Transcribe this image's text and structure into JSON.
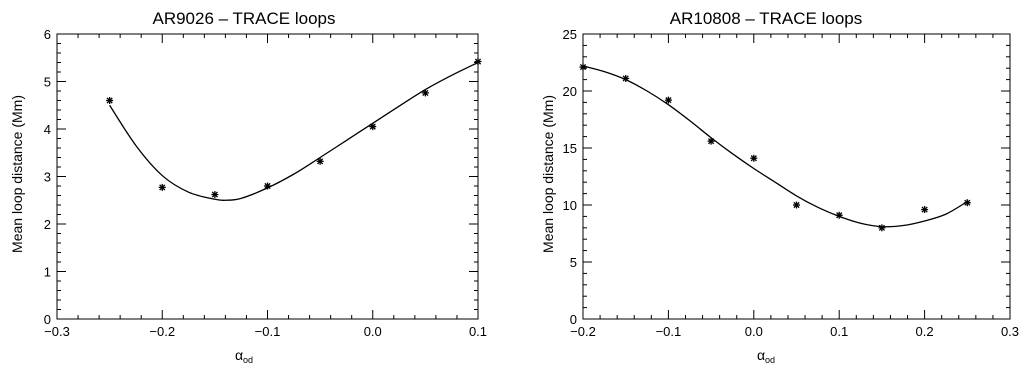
{
  "chart_data": [
    {
      "type": "scatter",
      "title": "AR9026 – TRACE loops",
      "xlabel": "α",
      "xlabel_subscript": "od",
      "ylabel": "Mean loop distance (Mm)",
      "xlim": [
        -0.3,
        0.1
      ],
      "ylim": [
        0,
        6
      ],
      "x_ticks": [
        -0.3,
        -0.2,
        -0.1,
        0.0,
        0.1
      ],
      "x_tick_labels": [
        "−0.3",
        "−0.2",
        "−0.1",
        "0.0",
        "0.1"
      ],
      "y_ticks": [
        0,
        1,
        2,
        3,
        4,
        5,
        6
      ],
      "y_tick_labels": [
        "0",
        "1",
        "2",
        "3",
        "4",
        "5",
        "6"
      ],
      "grid": false,
      "marker": "asterisk",
      "series": [
        {
          "kind": "points",
          "x": [
            -0.25,
            -0.2,
            -0.15,
            -0.1,
            -0.05,
            0.0,
            0.05,
            0.1
          ],
          "y": [
            4.6,
            2.77,
            2.62,
            2.8,
            3.32,
            4.05,
            4.76,
            5.42
          ]
        },
        {
          "kind": "fit_curve",
          "x": [
            -0.25,
            -0.225,
            -0.2,
            -0.175,
            -0.15,
            -0.14,
            -0.125,
            -0.1,
            -0.075,
            -0.05,
            -0.025,
            0.0,
            0.025,
            0.05,
            0.075,
            0.1
          ],
          "y": [
            4.5,
            3.65,
            3.02,
            2.67,
            2.52,
            2.5,
            2.54,
            2.76,
            3.05,
            3.4,
            3.76,
            4.12,
            4.48,
            4.83,
            5.13,
            5.4
          ]
        }
      ]
    },
    {
      "type": "scatter",
      "title": "AR10808 – TRACE loops",
      "xlabel": "α",
      "xlabel_subscript": "od",
      "ylabel": "Mean loop distance (Mm)",
      "xlim": [
        -0.2,
        0.3
      ],
      "ylim": [
        0,
        25
      ],
      "x_ticks": [
        -0.2,
        -0.1,
        0.0,
        0.1,
        0.2,
        0.3
      ],
      "x_tick_labels": [
        "−0.2",
        "−0.1",
        "0.0",
        "0.1",
        "0.2",
        "0.3"
      ],
      "y_ticks": [
        0,
        5,
        10,
        15,
        20,
        25
      ],
      "y_tick_labels": [
        "0",
        "5",
        "10",
        "15",
        "20",
        "25"
      ],
      "grid": false,
      "marker": "asterisk",
      "series": [
        {
          "kind": "points",
          "x": [
            -0.2,
            -0.15,
            -0.1,
            -0.05,
            0.0,
            0.05,
            0.1,
            0.15,
            0.2,
            0.25
          ],
          "y": [
            22.1,
            21.1,
            19.2,
            15.6,
            14.1,
            10.0,
            9.1,
            8.0,
            9.6,
            10.2
          ]
        },
        {
          "kind": "fit_curve",
          "x": [
            -0.2,
            -0.175,
            -0.15,
            -0.125,
            -0.1,
            -0.075,
            -0.05,
            -0.025,
            0.0,
            0.025,
            0.05,
            0.075,
            0.1,
            0.125,
            0.15,
            0.175,
            0.2,
            0.225,
            0.25
          ],
          "y": [
            22.2,
            21.7,
            21.0,
            20.0,
            18.8,
            17.4,
            15.9,
            14.5,
            13.2,
            12.0,
            10.8,
            9.8,
            9.0,
            8.4,
            8.1,
            8.2,
            8.6,
            9.2,
            10.3
          ]
        }
      ]
    }
  ]
}
